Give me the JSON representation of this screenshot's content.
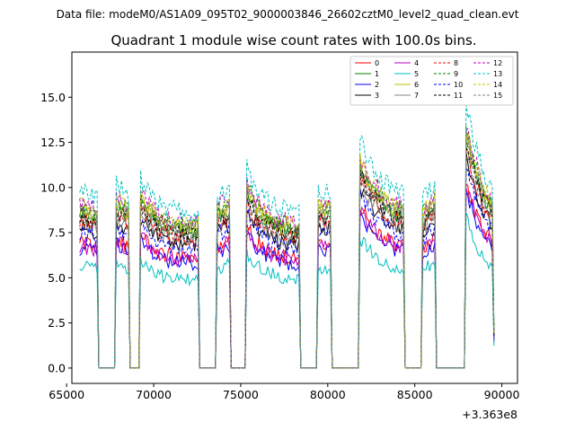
{
  "chart_data": {
    "type": "line",
    "suptitle": "Data file: modeM0/AS1A09_095T02_9000003846_26602cztM0_level2_quad_clean.evt",
    "title": "Quadrant 1 module wise count rates with 100.0s bins.",
    "xlabel": "",
    "ylabel": "",
    "x_offset_label": "+3.363e8",
    "xlim": [
      65300,
      90900
    ],
    "ylim": [
      -0.85,
      17.5
    ],
    "xticks": [
      65000,
      70000,
      75000,
      80000,
      85000,
      90000
    ],
    "xtick_labels": [
      "65000",
      "70000",
      "75000",
      "80000",
      "85000",
      "90000"
    ],
    "yticks": [
      0.0,
      2.5,
      5.0,
      7.5,
      10.0,
      12.5,
      15.0
    ],
    "ytick_labels": [
      "0.0",
      "2.5",
      "5.0",
      "7.5",
      "10.0",
      "12.5",
      "15.0"
    ],
    "grid": false,
    "legend_position": "top-right",
    "x_start": 65750,
    "x_end": 89550,
    "bin_size": 100,
    "gaps": [
      [
        66800,
        67800
      ],
      [
        68600,
        69200
      ],
      [
        72600,
        73600
      ],
      [
        74400,
        75300
      ],
      [
        78400,
        79400
      ],
      [
        80200,
        81800
      ],
      [
        84400,
        85400
      ],
      [
        86200,
        87900
      ]
    ],
    "segment_shape": [
      {
        "start": 65750,
        "end": 66800,
        "p": [
          1.0,
          0.99,
          0.98,
          0.97,
          0.96
        ]
      },
      {
        "start": 67800,
        "end": 68600,
        "p": [
          1.05,
          1.0,
          0.98
        ]
      },
      {
        "start": 69200,
        "end": 72600,
        "p": [
          1.08,
          0.98,
          0.93,
          0.9,
          0.89,
          0.88,
          0.88
        ]
      },
      {
        "start": 73600,
        "end": 74400,
        "p": [
          0.98,
          1.0,
          1.02
        ]
      },
      {
        "start": 75300,
        "end": 78400,
        "p": [
          1.16,
          1.02,
          0.96,
          0.92,
          0.9,
          0.88,
          0.87
        ]
      },
      {
        "start": 79400,
        "end": 80200,
        "p": [
          0.98,
          1.0,
          1.0
        ]
      },
      {
        "start": 81800,
        "end": 84400,
        "p": [
          1.3,
          1.18,
          1.1,
          1.04,
          1.0,
          0.98
        ]
      },
      {
        "start": 85400,
        "end": 86200,
        "p": [
          0.95,
          1.0,
          1.04
        ]
      },
      {
        "start": 87900,
        "end": 89550,
        "p": [
          1.5,
          1.35,
          1.22,
          1.12,
          1.06,
          1.0
        ]
      }
    ],
    "series": [
      {
        "name": "0",
        "color": "#ff0000",
        "dashed": false,
        "level": 6.9
      },
      {
        "name": "1",
        "color": "#008000",
        "dashed": false,
        "level": 8.6
      },
      {
        "name": "2",
        "color": "#0000ff",
        "dashed": false,
        "level": 6.6
      },
      {
        "name": "3",
        "color": "#000000",
        "dashed": false,
        "level": 7.8
      },
      {
        "name": "4",
        "color": "#bf00bf",
        "dashed": false,
        "level": 6.8
      },
      {
        "name": "5",
        "color": "#00bfbf",
        "dashed": false,
        "level": 5.6
      },
      {
        "name": "6",
        "color": "#bfbf00",
        "dashed": false,
        "level": 8.8
      },
      {
        "name": "7",
        "color": "#808080",
        "dashed": false,
        "level": 8.1
      },
      {
        "name": "8",
        "color": "#ff0000",
        "dashed": true,
        "level": 8.2
      },
      {
        "name": "9",
        "color": "#008000",
        "dashed": true,
        "level": 8.9
      },
      {
        "name": "10",
        "color": "#0000ff",
        "dashed": true,
        "level": 7.5
      },
      {
        "name": "11",
        "color": "#000000",
        "dashed": true,
        "level": 8.4
      },
      {
        "name": "12",
        "color": "#bf00bf",
        "dashed": true,
        "level": 9.1
      },
      {
        "name": "13",
        "color": "#00bfbf",
        "dashed": true,
        "level": 9.8
      },
      {
        "name": "14",
        "color": "#bfbf00",
        "dashed": true,
        "level": 9.0
      },
      {
        "name": "15",
        "color": "#808080",
        "dashed": true,
        "level": 8.7
      }
    ]
  }
}
